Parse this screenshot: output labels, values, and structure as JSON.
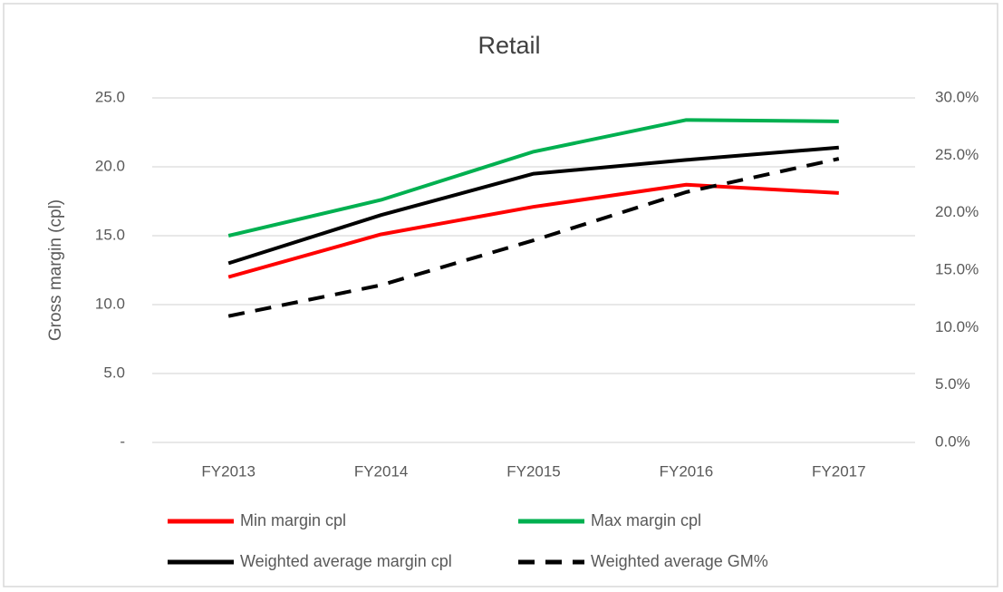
{
  "chart_data": {
    "type": "line",
    "title": "Retail",
    "y_label": "Gross margin (cpl)",
    "categories": [
      "FY2013",
      "FY2014",
      "FY2015",
      "FY2016",
      "FY2017"
    ],
    "series": [
      {
        "name": "Min margin cpl",
        "color": "#ff0000",
        "values": [
          12.0,
          15.1,
          17.1,
          18.7,
          18.1
        ]
      },
      {
        "name": "Max margin cpl",
        "color": "#00b050",
        "values": [
          15.0,
          17.6,
          21.1,
          23.4,
          23.3
        ]
      },
      {
        "name": "Weighted average margin cpl",
        "color": "#000000",
        "values": [
          13.0,
          16.5,
          19.5,
          20.5,
          21.4
        ]
      },
      {
        "name": "Weighted average GM%",
        "color": "#000000",
        "dashed": true,
        "axis": "y2",
        "values": [
          11.0,
          13.7,
          17.6,
          21.8,
          24.7
        ]
      }
    ],
    "ylim": [
      0,
      25
    ],
    "yticks": [
      {
        "value": 0,
        "label": "-"
      },
      {
        "value": 5,
        "label": "5.0"
      },
      {
        "value": 10,
        "label": "10.0"
      },
      {
        "value": 15,
        "label": "15.0"
      },
      {
        "value": 20,
        "label": "20.0"
      },
      {
        "value": 25,
        "label": "25.0"
      }
    ],
    "y2lim": [
      0,
      30
    ],
    "y2ticks": [
      {
        "value": 0,
        "label": "0.0%"
      },
      {
        "value": 5,
        "label": "5.0%"
      },
      {
        "value": 10,
        "label": "10.0%"
      },
      {
        "value": 15,
        "label": "15.0%"
      },
      {
        "value": 20,
        "label": "20.0%"
      },
      {
        "value": 25,
        "label": "25.0%"
      },
      {
        "value": 30,
        "label": "30.0%"
      }
    ],
    "grid": true,
    "legend": "bottom"
  }
}
